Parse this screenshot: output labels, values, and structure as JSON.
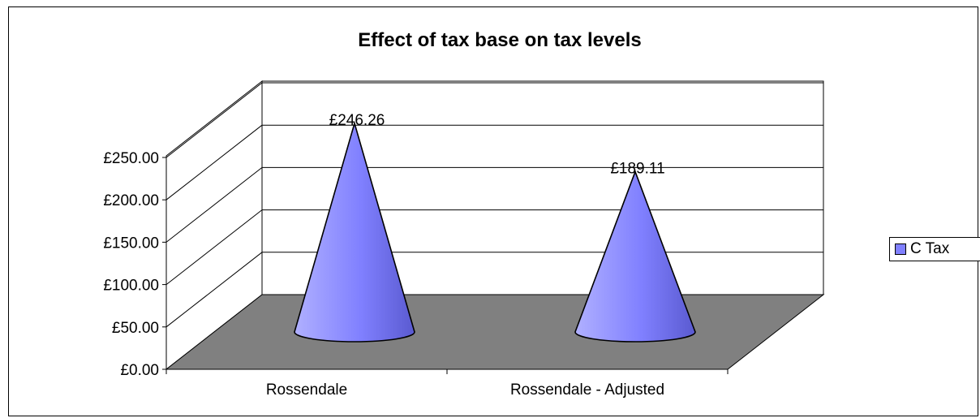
{
  "chart_data": {
    "type": "bar",
    "title": "Effect of tax base on tax levels",
    "categories": [
      "Rossendale",
      "Rossendale -  Adjusted"
    ],
    "series": [
      {
        "name": "C Tax",
        "values": [
          246.26,
          189.11
        ],
        "labels": [
          "£246.26",
          "£189.11"
        ]
      }
    ],
    "ylim": [
      0,
      250
    ],
    "yticks": [
      "£0.00",
      "£50.00",
      "£100.00",
      "£150.00",
      "£200.00",
      "£250.00"
    ],
    "xlabel": "",
    "ylabel": "",
    "grid": true,
    "legend_position": "right",
    "shape": "cone",
    "colors": {
      "cone": "#8080ff",
      "floor": "#808080",
      "background": "#ffffff"
    }
  }
}
